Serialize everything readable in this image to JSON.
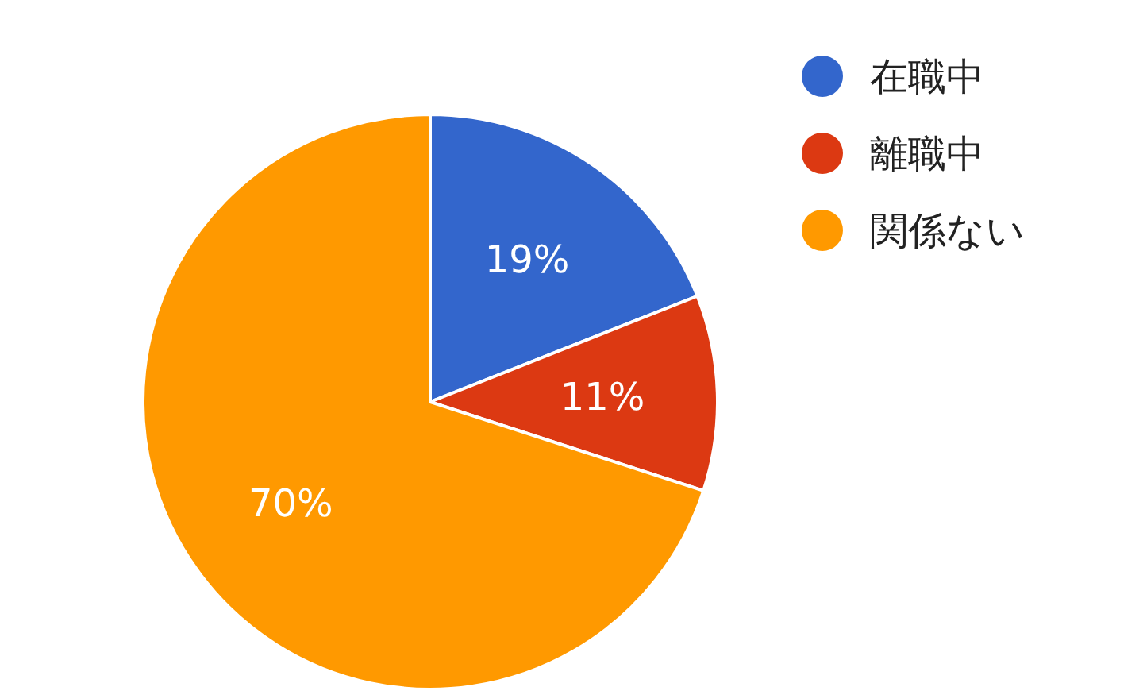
{
  "chart_data": {
    "type": "pie",
    "categories": [
      "在職中",
      "離職中",
      "関係ない"
    ],
    "values": [
      19,
      11,
      70
    ],
    "colors": [
      "#3366cc",
      "#dc3912",
      "#ff9900"
    ],
    "value_labels": [
      "19%",
      "11%",
      "70%"
    ],
    "legend": "top right"
  }
}
